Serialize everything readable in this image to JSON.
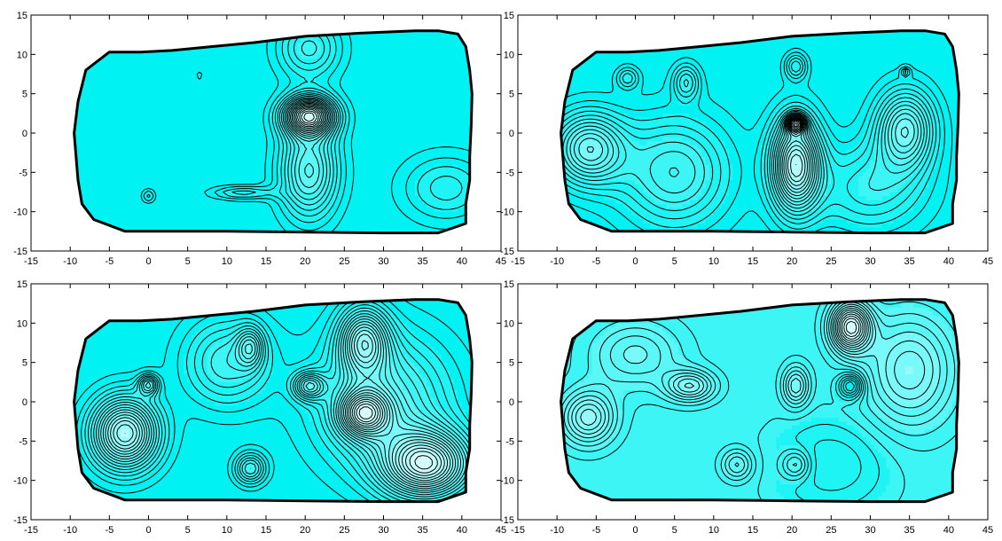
{
  "chart_data": [
    {
      "type": "contour",
      "panel": "top-left",
      "xlim": [
        -15,
        45
      ],
      "ylim": [
        -15,
        15
      ],
      "xticks": [
        -15,
        -10,
        -5,
        0,
        5,
        10,
        15,
        20,
        25,
        30,
        35,
        40,
        45
      ],
      "yticks": [
        -15,
        -10,
        -5,
        0,
        5,
        10,
        15
      ],
      "colormap": [
        "#00f2f2",
        "#f2ffff"
      ],
      "field_range": [
        0,
        1
      ],
      "boundary": [
        [
          -9.5,
          0
        ],
        [
          -9,
          4
        ],
        [
          -8,
          8
        ],
        [
          -5,
          10.3
        ],
        [
          -1,
          10.3
        ],
        [
          3,
          10.5
        ],
        [
          13.5,
          11.5
        ],
        [
          20,
          12.3
        ],
        [
          27,
          12.7
        ],
        [
          34,
          13
        ],
        [
          37,
          13
        ],
        [
          39.5,
          12.6
        ],
        [
          40.5,
          11
        ],
        [
          41,
          8
        ],
        [
          41.3,
          5
        ],
        [
          41.2,
          1
        ],
        [
          41,
          -3
        ],
        [
          41,
          -6
        ],
        [
          40.5,
          -9
        ],
        [
          40.5,
          -11.5
        ],
        [
          37,
          -12.7
        ],
        [
          30,
          -12.7
        ],
        [
          20,
          -12.6
        ],
        [
          10,
          -12.5
        ],
        [
          -3,
          -12.5
        ],
        [
          -7,
          -11
        ],
        [
          -8.5,
          -9
        ],
        [
          -9,
          -6
        ]
      ],
      "sources": [
        {
          "x": 20.5,
          "y": 2.2,
          "amp": 0.85,
          "sx": 2.3,
          "sy": 1.7
        },
        {
          "x": 20.5,
          "y": -4.8,
          "amp": 0.45,
          "sx": 2.6,
          "sy": 4.2
        },
        {
          "x": 20.5,
          "y": 10.8,
          "amp": 0.28,
          "sx": 2.8,
          "sy": 2.8
        },
        {
          "x": 0,
          "y": -8,
          "amp": 0.15,
          "sx": 0.6,
          "sy": 0.6
        },
        {
          "x": 12,
          "y": -7.6,
          "amp": 0.2,
          "sx": 2.8,
          "sy": 0.6
        },
        {
          "x": 38,
          "y": -7,
          "amp": 0.2,
          "sx": 4,
          "sy": 3
        },
        {
          "x": 6.5,
          "y": 7.3,
          "amp": 0.1,
          "sx": 0.3,
          "sy": 0.3
        }
      ]
    },
    {
      "type": "contour",
      "panel": "top-right",
      "xlim": [
        -15,
        45
      ],
      "ylim": [
        -15,
        15
      ],
      "xticks": [
        -15,
        -10,
        -5,
        0,
        5,
        10,
        15,
        20,
        25,
        30,
        35,
        40,
        45
      ],
      "yticks": [
        -15,
        -10,
        -5,
        0,
        5,
        10,
        15
      ],
      "colormap": [
        "#00f2f2",
        "#f2ffff"
      ],
      "field_range": [
        0,
        1
      ],
      "boundary": [
        [
          -9.5,
          0
        ],
        [
          -9,
          4
        ],
        [
          -8,
          8
        ],
        [
          -5,
          10.3
        ],
        [
          -1,
          10.3
        ],
        [
          3,
          10.5
        ],
        [
          13.5,
          11.5
        ],
        [
          20,
          12.3
        ],
        [
          27,
          12.7
        ],
        [
          34,
          13
        ],
        [
          37,
          13
        ],
        [
          39.5,
          12.6
        ],
        [
          40.5,
          11
        ],
        [
          41,
          8
        ],
        [
          41.3,
          5
        ],
        [
          41.2,
          1
        ],
        [
          41,
          -3
        ],
        [
          41,
          -6
        ],
        [
          40.5,
          -9
        ],
        [
          40.5,
          -11.5
        ],
        [
          37,
          -12.7
        ],
        [
          30,
          -12.7
        ],
        [
          20,
          -12.6
        ],
        [
          10,
          -12.5
        ],
        [
          -3,
          -12.5
        ],
        [
          -7,
          -11
        ],
        [
          -8.5,
          -9
        ],
        [
          -9,
          -6
        ]
      ],
      "sources": [
        {
          "x": 20.5,
          "y": -4,
          "amp": 0.75,
          "sx": 2.2,
          "sy": 4.2
        },
        {
          "x": 20.5,
          "y": 1.2,
          "amp": 0.6,
          "sx": 0.8,
          "sy": 0.8
        },
        {
          "x": -6,
          "y": -2,
          "amp": 0.5,
          "sx": 3.2,
          "sy": 3.2
        },
        {
          "x": 34.5,
          "y": 0.5,
          "amp": 0.5,
          "sx": 2.6,
          "sy": 3.5
        },
        {
          "x": 6.5,
          "y": 6.5,
          "amp": 0.25,
          "sx": 1.2,
          "sy": 1.6
        },
        {
          "x": 20.5,
          "y": 8.5,
          "amp": 0.25,
          "sx": 1,
          "sy": 1.2
        },
        {
          "x": 34.5,
          "y": 7.8,
          "amp": 0.2,
          "sx": 0.4,
          "sy": 0.4
        },
        {
          "x": -1,
          "y": 7,
          "amp": 0.2,
          "sx": 1,
          "sy": 1
        },
        {
          "x": 5,
          "y": -5,
          "amp": 0.35,
          "sx": 5,
          "sy": 5
        },
        {
          "x": 30,
          "y": -7,
          "amp": 0.25,
          "sx": 5,
          "sy": 4
        }
      ]
    },
    {
      "type": "contour",
      "panel": "bottom-left",
      "xlim": [
        -15,
        45
      ],
      "ylim": [
        -15,
        15
      ],
      "xticks": [
        -15,
        -10,
        -5,
        0,
        5,
        10,
        15,
        20,
        25,
        30,
        35,
        40,
        45
      ],
      "yticks": [
        -15,
        -10,
        -5,
        0,
        5,
        10,
        15
      ],
      "colormap": [
        "#00f2f2",
        "#f2ffff"
      ],
      "field_range": [
        0,
        1
      ],
      "boundary": [
        [
          -9.5,
          0
        ],
        [
          -9,
          4
        ],
        [
          -8,
          8
        ],
        [
          -5,
          10.3
        ],
        [
          -1,
          10.3
        ],
        [
          3,
          10.5
        ],
        [
          13.5,
          11.5
        ],
        [
          20,
          12.3
        ],
        [
          27,
          12.7
        ],
        [
          34,
          13
        ],
        [
          37,
          13
        ],
        [
          39.5,
          12.6
        ],
        [
          40.5,
          11
        ],
        [
          41,
          8
        ],
        [
          41.3,
          5
        ],
        [
          41.2,
          1
        ],
        [
          41,
          -3
        ],
        [
          41,
          -6
        ],
        [
          40.5,
          -9
        ],
        [
          40.5,
          -11.5
        ],
        [
          37,
          -12.7
        ],
        [
          30,
          -12.7
        ],
        [
          20,
          -12.6
        ],
        [
          10,
          -12.5
        ],
        [
          -3,
          -12.5
        ],
        [
          -7,
          -11
        ],
        [
          -8.5,
          -9
        ],
        [
          -9,
          -6
        ]
      ],
      "sources": [
        {
          "x": -3,
          "y": -4,
          "amp": 0.75,
          "sx": 3,
          "sy": 3.2
        },
        {
          "x": 0,
          "y": 2.2,
          "amp": 0.35,
          "sx": 0.9,
          "sy": 0.9
        },
        {
          "x": 13,
          "y": -8.5,
          "amp": 0.35,
          "sx": 1.4,
          "sy": 1.4
        },
        {
          "x": 27.5,
          "y": 7.8,
          "amp": 0.55,
          "sx": 2.2,
          "sy": 3
        },
        {
          "x": 35.5,
          "y": -8,
          "amp": 0.8,
          "sx": 4,
          "sy": 3
        },
        {
          "x": 27.5,
          "y": -1.5,
          "amp": 0.6,
          "sx": 2.2,
          "sy": 2
        },
        {
          "x": 20.5,
          "y": 2,
          "amp": 0.4,
          "sx": 1.4,
          "sy": 1.2
        },
        {
          "x": 13,
          "y": 7,
          "amp": 0.3,
          "sx": 1.2,
          "sy": 1.8
        },
        {
          "x": 10,
          "y": 5,
          "amp": 0.3,
          "sx": 4,
          "sy": 4
        },
        {
          "x": 30,
          "y": 0,
          "amp": 0.4,
          "sx": 6,
          "sy": 6
        }
      ]
    },
    {
      "type": "contour",
      "panel": "bottom-right",
      "xlim": [
        -15,
        45
      ],
      "ylim": [
        -15,
        15
      ],
      "xticks": [
        -15,
        -10,
        -5,
        0,
        5,
        10,
        15,
        20,
        25,
        30,
        35,
        40,
        45
      ],
      "yticks": [
        -15,
        -10,
        -5,
        0,
        5,
        10,
        15
      ],
      "colormap": [
        "#00f2f2",
        "#f2ffff"
      ],
      "field_range": [
        0,
        1
      ],
      "boundary": [
        [
          -9.5,
          0
        ],
        [
          -9,
          4
        ],
        [
          -8,
          8
        ],
        [
          -5,
          10.3
        ],
        [
          -1,
          10.3
        ],
        [
          3,
          10.5
        ],
        [
          13.5,
          11.5
        ],
        [
          20,
          12.3
        ],
        [
          27,
          12.7
        ],
        [
          34,
          13
        ],
        [
          37,
          13
        ],
        [
          39.5,
          12.6
        ],
        [
          40.5,
          11
        ],
        [
          41,
          8
        ],
        [
          41.3,
          5
        ],
        [
          41.2,
          1
        ],
        [
          41,
          -3
        ],
        [
          41,
          -6
        ],
        [
          40.5,
          -9
        ],
        [
          40.5,
          -11.5
        ],
        [
          37,
          -12.7
        ],
        [
          30,
          -12.7
        ],
        [
          20,
          -12.6
        ],
        [
          10,
          -12.5
        ],
        [
          -3,
          -12.5
        ],
        [
          -7,
          -11
        ],
        [
          -8.5,
          -9
        ],
        [
          -9,
          -6
        ]
      ],
      "sources": [
        {
          "x": 27.5,
          "y": 9.5,
          "amp": 0.9,
          "sx": 1.8,
          "sy": 2.2
        },
        {
          "x": 27.5,
          "y": 2,
          "amp": -0.45,
          "sx": 1.1,
          "sy": 1.1
        },
        {
          "x": 7,
          "y": 2,
          "amp": 0.45,
          "sx": 2.2,
          "sy": 1.4
        },
        {
          "x": 20.5,
          "y": 2,
          "amp": 0.4,
          "sx": 1.2,
          "sy": 1.8
        },
        {
          "x": -6,
          "y": -2,
          "amp": 0.5,
          "sx": 2.4,
          "sy": 2.4
        },
        {
          "x": 13,
          "y": -8,
          "amp": 0.3,
          "sx": 1.4,
          "sy": 1.4
        },
        {
          "x": 20.5,
          "y": -8,
          "amp": 0.3,
          "sx": 1.3,
          "sy": 1.3
        },
        {
          "x": 35,
          "y": 4,
          "amp": 0.45,
          "sx": 4,
          "sy": 5
        },
        {
          "x": 0,
          "y": 6,
          "amp": 0.3,
          "sx": 4,
          "sy": 3
        },
        {
          "x": 25,
          "y": -8,
          "amp": -0.2,
          "sx": 5,
          "sy": 4
        }
      ]
    }
  ]
}
